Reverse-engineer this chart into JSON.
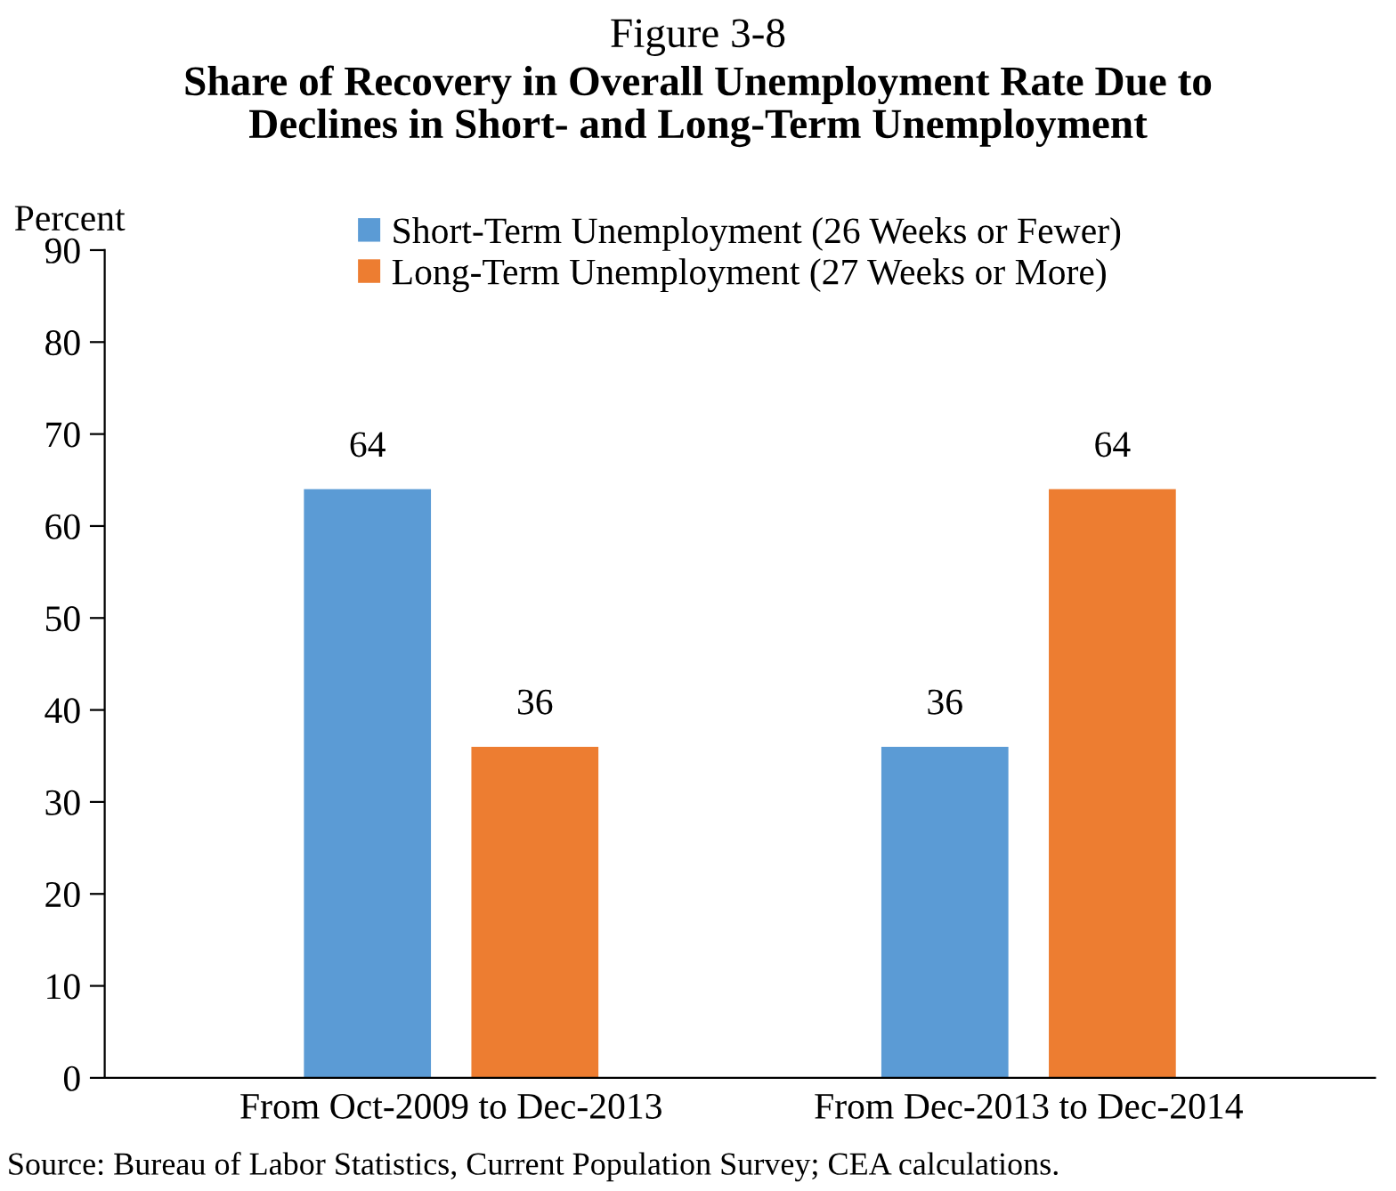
{
  "chart_data": {
    "type": "bar",
    "title": "Figure 3-8",
    "subtitle": "Share of Recovery in Overall Unemployment Rate Due to\nDeclines in Short- and Long-Term Unemployment",
    "ylabel": "Percent",
    "categories": [
      "From Oct-2009 to Dec-2013",
      "From Dec-2013 to Dec-2014"
    ],
    "series": [
      {
        "name": "Short-Term Unemployment (26 Weeks or Fewer)",
        "color": "#5b9bd5",
        "values": [
          64,
          36
        ]
      },
      {
        "name": "Long-Term Unemployment (27 Weeks or More)",
        "color": "#ed7d31",
        "values": [
          36,
          64
        ]
      }
    ],
    "ylim": [
      0,
      90
    ],
    "yticks": [
      0,
      10,
      20,
      30,
      40,
      50,
      60,
      70,
      80,
      90
    ],
    "data_labels": true,
    "legend": "top",
    "grid": false,
    "annotations": [
      "Source: Bureau of Labor Statistics, Current Population Survey; CEA calculations."
    ]
  }
}
